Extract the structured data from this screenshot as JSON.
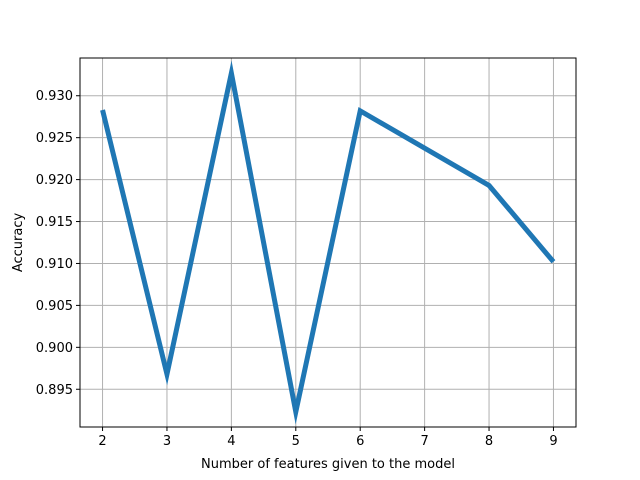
{
  "chart_data": {
    "type": "line",
    "title": "",
    "xlabel": "Number of features given to the model",
    "ylabel": "Accuracy",
    "x": [
      2,
      3,
      4,
      5,
      6,
      8,
      9
    ],
    "series": [
      {
        "values": [
          0.9283,
          0.8968,
          0.9327,
          0.8923,
          0.9282,
          0.9193,
          0.9102
        ]
      }
    ],
    "xlim": [
      1.65,
      9.35
    ],
    "ylim": [
      0.8905,
      0.9345
    ],
    "xticks": [
      2,
      3,
      4,
      5,
      6,
      7,
      8,
      9
    ],
    "xtick_labels": [
      "2",
      "3",
      "4",
      "5",
      "6",
      "7",
      "8",
      "9"
    ],
    "yticks": [
      0.895,
      0.9,
      0.905,
      0.91,
      0.915,
      0.92,
      0.925,
      0.93
    ],
    "ytick_labels": [
      "0.895",
      "0.900",
      "0.905",
      "0.910",
      "0.915",
      "0.920",
      "0.925",
      "0.930"
    ],
    "grid": true,
    "line_color": "#1f77b4"
  }
}
